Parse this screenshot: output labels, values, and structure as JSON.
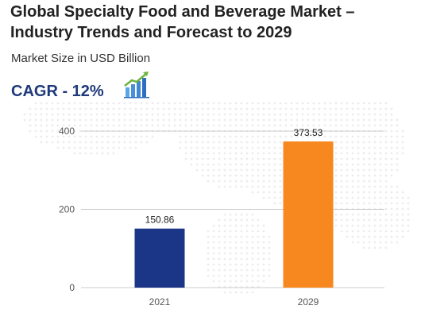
{
  "header": {
    "title": "Global Specialty Food and Beverage Market – Industry Trends and Forecast to 2029",
    "subtitle": "Market Size in USD Billion",
    "cagr": "CAGR - 12%"
  },
  "icons": {
    "cagr": "growth-bar-chart-icon"
  },
  "colors": {
    "title": "#222222",
    "cagr": "#1f3a7a",
    "gridline": "#cccccc"
  },
  "chart_data": {
    "type": "bar",
    "categories": [
      "2021",
      "2029"
    ],
    "values": [
      150.86,
      373.53
    ],
    "data_labels": [
      "150.86",
      "373.53"
    ],
    "colors": [
      "#1b3587",
      "#f7881f"
    ],
    "yticks": [
      "0",
      "200",
      "400"
    ],
    "ylim": [
      0,
      400
    ],
    "grid": true,
    "legend": "none"
  }
}
